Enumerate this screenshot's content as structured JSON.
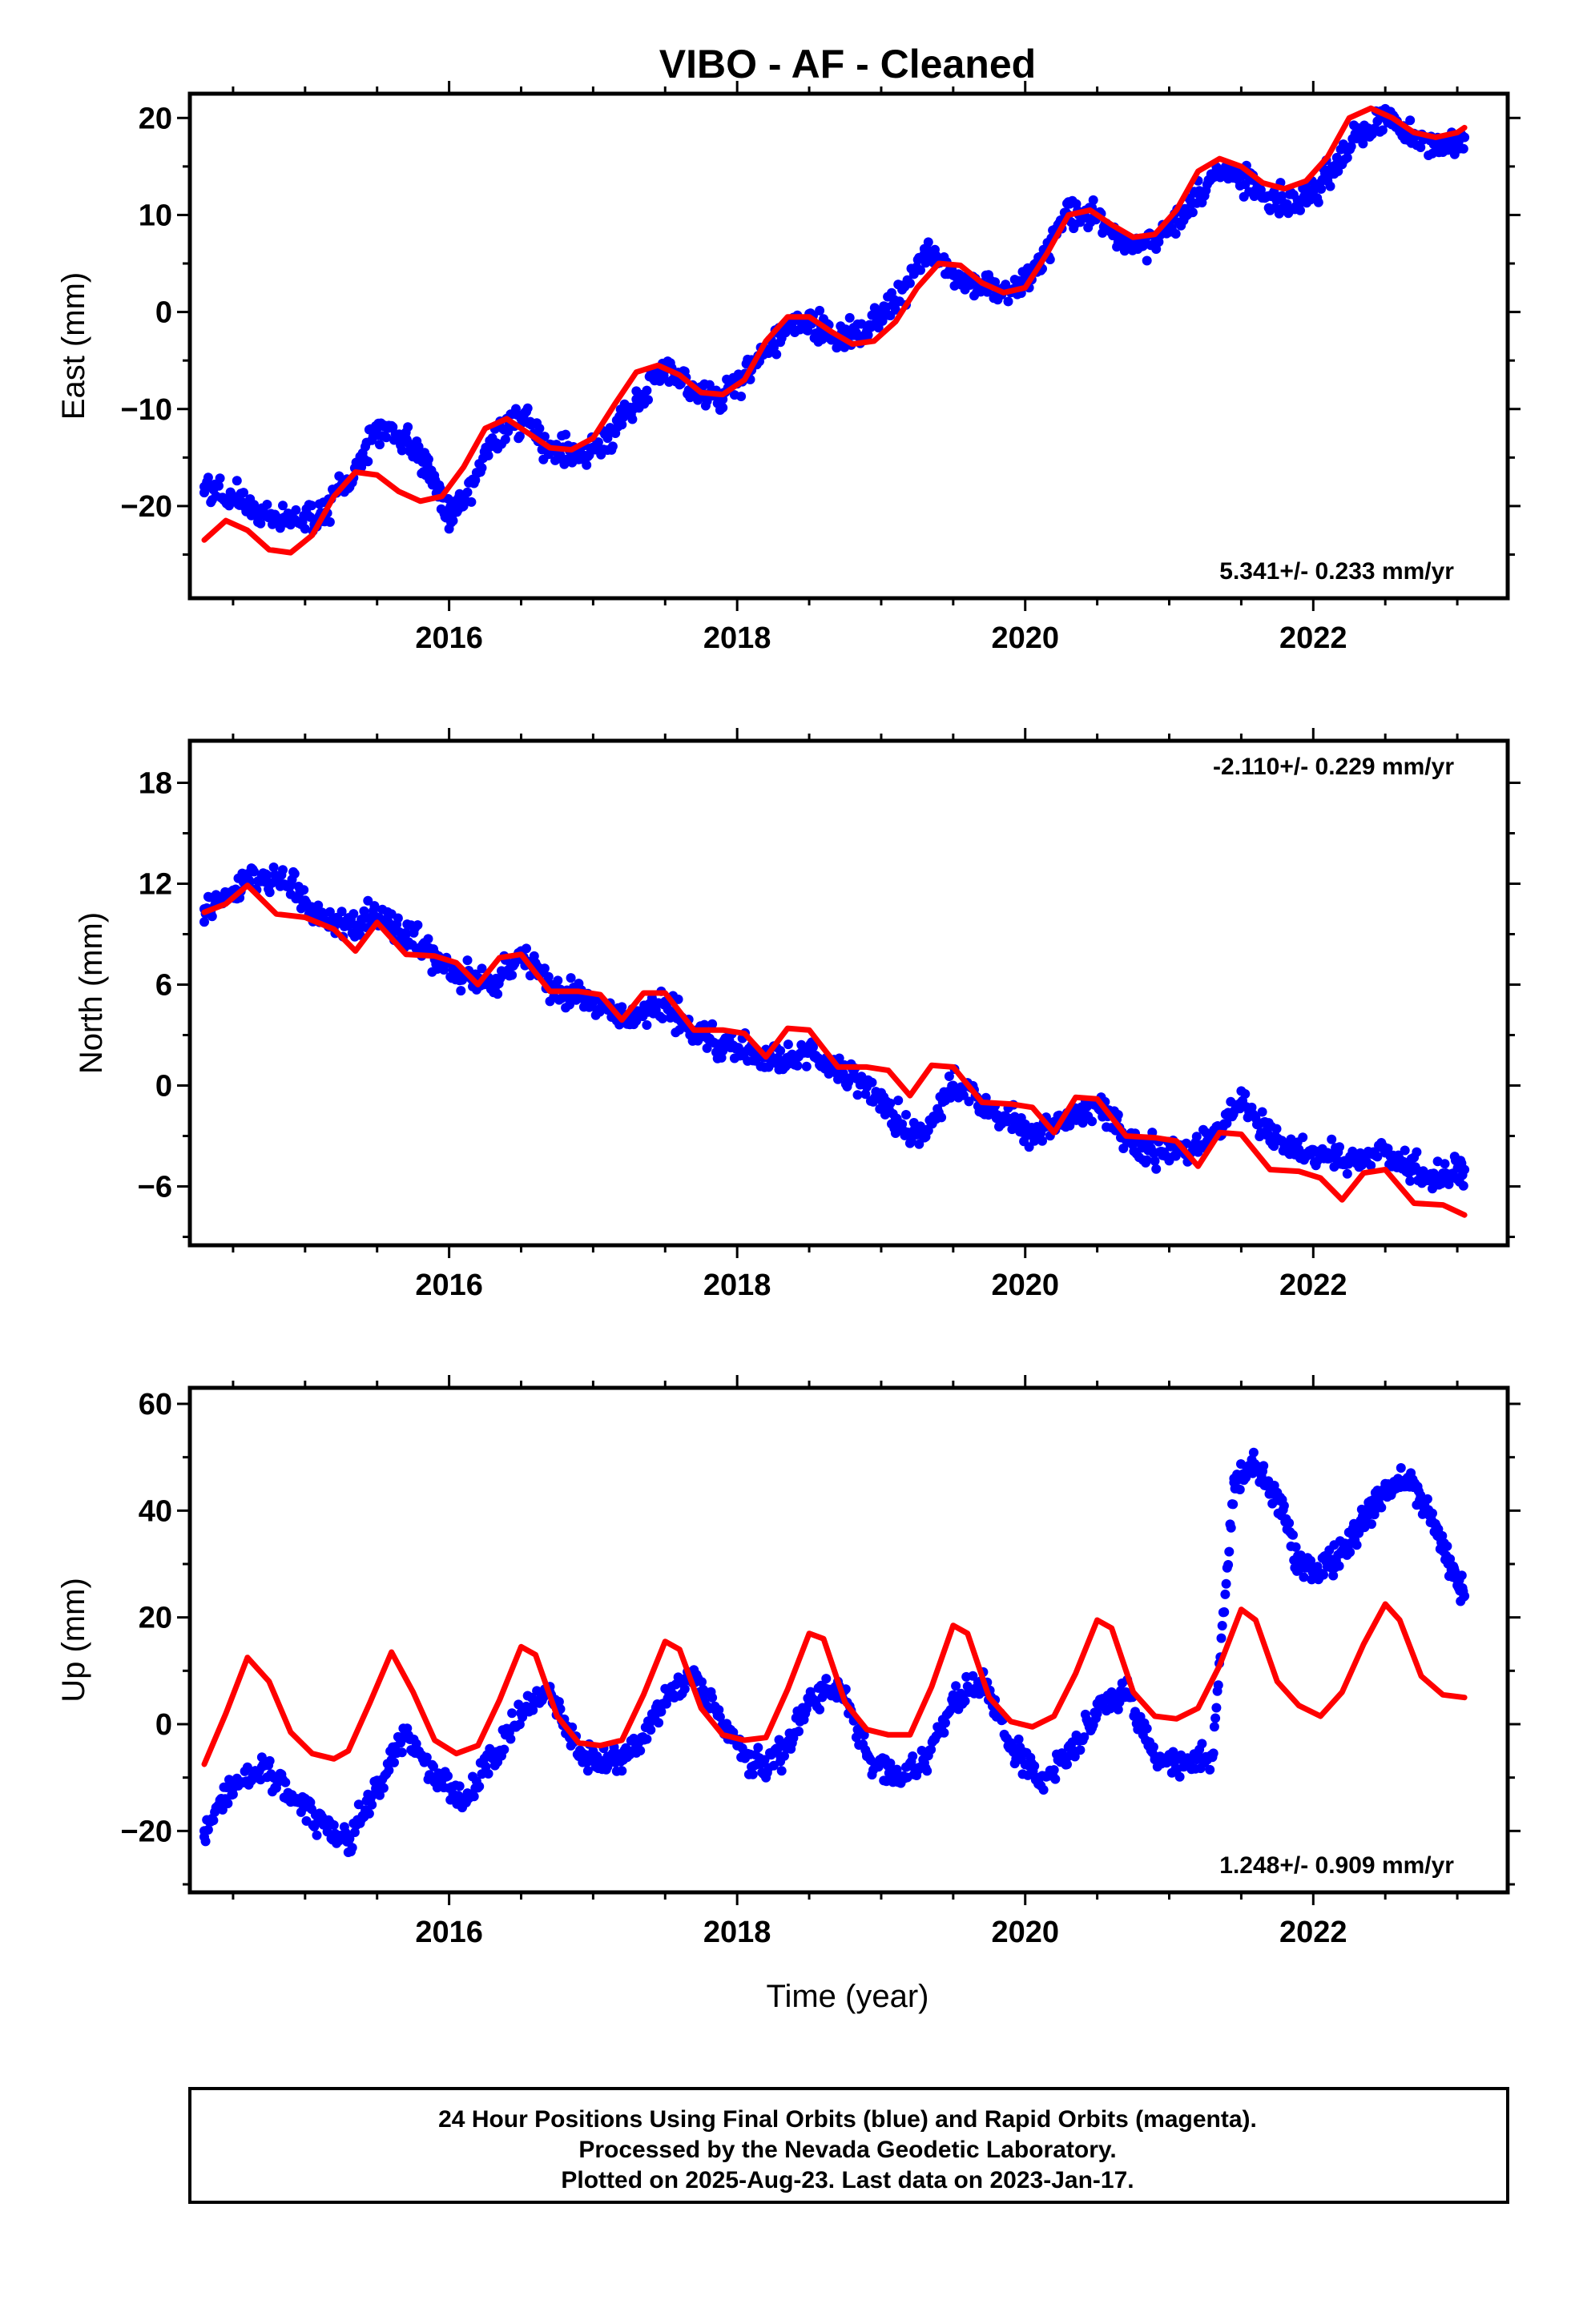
{
  "title": "VIBO  - AF - Cleaned",
  "xlabel": "Time (year)",
  "footer": [
    "24 Hour Positions Using Final Orbits (blue) and Rapid Orbits (magenta).",
    "Processed by the Nevada Geodetic Laboratory.",
    "Plotted on 2025-Aug-23. Last data on 2023-Jan-17."
  ],
  "colors": {
    "points": "#0000ff",
    "model": "#ff0000",
    "frame": "#000000"
  },
  "chart_data": [
    {
      "type": "scatter",
      "ylabel": "East (mm)",
      "rate_text": "5.341+/- 0.233 mm/yr",
      "rate_position": "bottom-right",
      "xlim": [
        2014.2,
        2023.35
      ],
      "ylim": [
        -29.5,
        22.5
      ],
      "xticks": [
        2016,
        2018,
        2020,
        2022
      ],
      "yticks": [
        -20,
        -10,
        0,
        10,
        20
      ],
      "ytick_labels": [
        "−20",
        "−10",
        "0",
        "10",
        "20"
      ],
      "series": [
        {
          "kind": "points",
          "x": [
            2014.3,
            2014.5,
            2014.7,
            2014.9,
            2015.1,
            2015.3,
            2015.5,
            2015.7,
            2015.85,
            2016.0,
            2016.1,
            2016.3,
            2016.5,
            2016.7,
            2016.9,
            2017.1,
            2017.3,
            2017.5,
            2017.7,
            2017.9,
            2018.1,
            2018.3,
            2018.5,
            2018.7,
            2018.9,
            2019.1,
            2019.3,
            2019.5,
            2019.7,
            2019.9,
            2020.1,
            2020.3,
            2020.5,
            2020.7,
            2020.9,
            2021.1,
            2021.3,
            2021.5,
            2021.7,
            2021.9,
            2022.1,
            2022.3,
            2022.5,
            2022.7,
            2022.9,
            2023.05
          ],
          "y": [
            -18,
            -19,
            -20.5,
            -21.5,
            -21,
            -18,
            -12,
            -13,
            -16,
            -21,
            -20,
            -13,
            -11,
            -14,
            -15,
            -13,
            -9,
            -6,
            -8,
            -9,
            -6,
            -2,
            -1,
            -3,
            -2,
            1,
            6,
            4,
            3,
            2,
            5,
            10,
            10,
            7,
            7,
            10,
            14,
            14,
            12,
            11,
            14,
            18,
            20,
            18,
            17,
            18
          ]
        },
        {
          "kind": "model",
          "x": [
            2014.3,
            2014.45,
            2014.6,
            2014.75,
            2014.9,
            2015.05,
            2015.2,
            2015.35,
            2015.5,
            2015.65,
            2015.8,
            2015.95,
            2016.1,
            2016.25,
            2016.4,
            2016.55,
            2016.7,
            2016.85,
            2017.0,
            2017.15,
            2017.3,
            2017.45,
            2017.6,
            2017.75,
            2017.9,
            2018.05,
            2018.2,
            2018.35,
            2018.5,
            2018.65,
            2018.8,
            2018.95,
            2019.1,
            2019.25,
            2019.4,
            2019.55,
            2019.7,
            2019.85,
            2020.0,
            2020.15,
            2020.3,
            2020.45,
            2020.6,
            2020.75,
            2020.9,
            2021.05,
            2021.2,
            2021.35,
            2021.5,
            2021.65,
            2021.8,
            2021.95,
            2022.1,
            2022.25,
            2022.4,
            2022.55,
            2022.7,
            2022.85,
            2023.0,
            2023.05
          ],
          "y": [
            -23.5,
            -21.5,
            -22.5,
            -24.5,
            -24.8,
            -23,
            -19,
            -16.5,
            -16.8,
            -18.5,
            -19.5,
            -19,
            -16,
            -12,
            -11,
            -12.5,
            -14,
            -14.2,
            -13,
            -9.5,
            -6.2,
            -5.5,
            -6.5,
            -8.3,
            -8.5,
            -7,
            -3,
            -0.5,
            -0.5,
            -2,
            -3.3,
            -3,
            -1,
            2.5,
            5,
            4.8,
            3,
            2,
            2.5,
            6,
            10,
            10.5,
            9,
            7.7,
            8,
            10.5,
            14.5,
            15.8,
            15,
            13.3,
            12.7,
            13.5,
            16,
            20,
            21,
            20,
            18.5,
            18,
            18.5,
            19
          ]
        }
      ]
    },
    {
      "type": "scatter",
      "ylabel": "North (mm)",
      "rate_text": "-2.110+/- 0.229 mm/yr",
      "rate_position": "top-right",
      "xlim": [
        2014.2,
        2023.35
      ],
      "ylim": [
        -9.5,
        20.5
      ],
      "xticks": [
        2016,
        2018,
        2020,
        2022
      ],
      "yticks": [
        -6,
        0,
        6,
        12,
        18
      ],
      "ytick_labels": [
        "−6",
        "0",
        "6",
        "12",
        "18"
      ],
      "series": [
        {
          "kind": "points",
          "x": [
            2014.3,
            2014.5,
            2014.7,
            2014.9,
            2015.1,
            2015.3,
            2015.5,
            2015.7,
            2015.9,
            2016.1,
            2016.3,
            2016.5,
            2016.7,
            2016.9,
            2017.1,
            2017.3,
            2017.5,
            2017.7,
            2017.9,
            2018.1,
            2018.3,
            2018.5,
            2018.7,
            2018.9,
            2019.1,
            2019.3,
            2019.5,
            2019.7,
            2019.9,
            2020.1,
            2020.3,
            2020.5,
            2020.7,
            2020.9,
            2021.1,
            2021.3,
            2021.5,
            2021.7,
            2021.9,
            2022.1,
            2022.3,
            2022.5,
            2022.7,
            2022.9,
            2023.05
          ],
          "y": [
            10.5,
            11.5,
            12.5,
            12,
            10,
            9.5,
            10,
            9,
            7.5,
            6.5,
            6,
            8,
            6,
            5.5,
            4.5,
            4,
            5,
            3,
            2.5,
            2,
            1.5,
            2,
            1,
            0,
            -2,
            -3,
            0,
            -1,
            -2,
            -3,
            -2,
            -1,
            -3,
            -4,
            -4,
            -3,
            -1,
            -3,
            -4,
            -4,
            -4.5,
            -4,
            -5,
            -5.5,
            -5
          ]
        },
        {
          "kind": "model",
          "x": [
            2014.3,
            2014.45,
            2014.6,
            2014.8,
            2015.0,
            2015.2,
            2015.35,
            2015.5,
            2015.7,
            2015.9,
            2016.05,
            2016.2,
            2016.35,
            2016.5,
            2016.7,
            2016.9,
            2017.05,
            2017.2,
            2017.35,
            2017.5,
            2017.7,
            2017.9,
            2018.05,
            2018.2,
            2018.35,
            2018.5,
            2018.7,
            2018.9,
            2019.05,
            2019.2,
            2019.35,
            2019.5,
            2019.7,
            2019.9,
            2020.05,
            2020.2,
            2020.35,
            2020.5,
            2020.7,
            2020.9,
            2021.05,
            2021.2,
            2021.35,
            2021.5,
            2021.7,
            2021.9,
            2022.05,
            2022.2,
            2022.35,
            2022.5,
            2022.7,
            2022.9,
            2023.05
          ],
          "y": [
            10.3,
            10.8,
            11.9,
            10.2,
            10,
            9.3,
            8,
            9.7,
            7.8,
            7.7,
            7.3,
            6,
            7.6,
            7.8,
            5.6,
            5.6,
            5.4,
            3.9,
            5.5,
            5.5,
            3.3,
            3.3,
            3.1,
            1.7,
            3.4,
            3.3,
            1.1,
            1.1,
            0.9,
            -0.6,
            1.2,
            1.1,
            -1,
            -1.1,
            -1.3,
            -2.8,
            -0.7,
            -0.8,
            -3,
            -3.1,
            -3.3,
            -4.8,
            -2.8,
            -2.9,
            -5,
            -5.1,
            -5.5,
            -6.8,
            -5.2,
            -5,
            -7,
            -7.1,
            -7.7
          ]
        }
      ]
    },
    {
      "type": "scatter",
      "ylabel": "Up (mm)",
      "rate_text": "1.248+/- 0.909 mm/yr",
      "rate_position": "bottom-right",
      "xlim": [
        2014.2,
        2023.35
      ],
      "ylim": [
        -31.5,
        63
      ],
      "xticks": [
        2016,
        2018,
        2020,
        2022
      ],
      "yticks": [
        -20,
        0,
        20,
        40,
        60
      ],
      "ytick_labels": [
        "−20",
        "0",
        "20",
        "40",
        "60"
      ],
      "series": [
        {
          "kind": "points",
          "x": [
            2014.3,
            2014.5,
            2014.7,
            2014.9,
            2015.1,
            2015.3,
            2015.5,
            2015.7,
            2015.9,
            2016.1,
            2016.3,
            2016.5,
            2016.7,
            2016.9,
            2017.1,
            2017.3,
            2017.5,
            2017.7,
            2017.9,
            2018.1,
            2018.3,
            2018.5,
            2018.7,
            2018.9,
            2019.1,
            2019.3,
            2019.5,
            2019.7,
            2019.9,
            2020.1,
            2020.3,
            2020.5,
            2020.7,
            2020.9,
            2021.1,
            2021.3,
            2021.45,
            2021.6,
            2021.75,
            2021.9,
            2022.05,
            2022.2,
            2022.35,
            2022.5,
            2022.65,
            2022.8,
            2022.95,
            2023.05
          ],
          "y": [
            -20,
            -12,
            -8,
            -14,
            -18,
            -22,
            -12,
            -2,
            -10,
            -14,
            -6,
            2,
            6,
            -6,
            -8,
            -4,
            4,
            10,
            0,
            -8,
            -6,
            4,
            8,
            -6,
            -10,
            -8,
            4,
            8,
            -4,
            -10,
            -6,
            2,
            6,
            -6,
            -8,
            -6,
            46,
            48,
            42,
            30,
            28,
            32,
            38,
            44,
            46,
            40,
            30,
            24
          ]
        },
        {
          "kind": "model",
          "x": [
            2014.3,
            2014.45,
            2014.6,
            2014.75,
            2014.9,
            2015.05,
            2015.2,
            2015.3,
            2015.45,
            2015.6,
            2015.75,
            2015.9,
            2016.05,
            2016.2,
            2016.35,
            2016.5,
            2016.6,
            2016.75,
            2016.9,
            2017.05,
            2017.2,
            2017.35,
            2017.5,
            2017.6,
            2017.75,
            2017.9,
            2018.05,
            2018.2,
            2018.35,
            2018.5,
            2018.6,
            2018.75,
            2018.9,
            2019.05,
            2019.2,
            2019.35,
            2019.5,
            2019.6,
            2019.75,
            2019.9,
            2020.05,
            2020.2,
            2020.35,
            2020.5,
            2020.6,
            2020.75,
            2020.9,
            2021.05,
            2021.2,
            2021.35,
            2021.5,
            2021.6,
            2021.75,
            2021.9,
            2022.05,
            2022.2,
            2022.35,
            2022.5,
            2022.6,
            2022.75,
            2022.9,
            2023.05
          ],
          "y": [
            -7.5,
            2,
            12.5,
            8,
            -1.5,
            -5.5,
            -6.5,
            -5,
            4,
            13.5,
            6,
            -3,
            -5.5,
            -4,
            4.5,
            14.5,
            13,
            1.5,
            -3.5,
            -4,
            -3,
            5.5,
            15.5,
            14,
            3,
            -2,
            -3,
            -2.5,
            6.5,
            17,
            16,
            4,
            -1,
            -2,
            -2,
            7,
            18.5,
            17,
            5,
            0.5,
            -0.5,
            1.5,
            9.5,
            19.5,
            18,
            6,
            1.5,
            1,
            3,
            11,
            21.5,
            19.5,
            8,
            3.5,
            1.5,
            6,
            15,
            22.5,
            19.5,
            9,
            5.5,
            5
          ]
        }
      ]
    }
  ]
}
